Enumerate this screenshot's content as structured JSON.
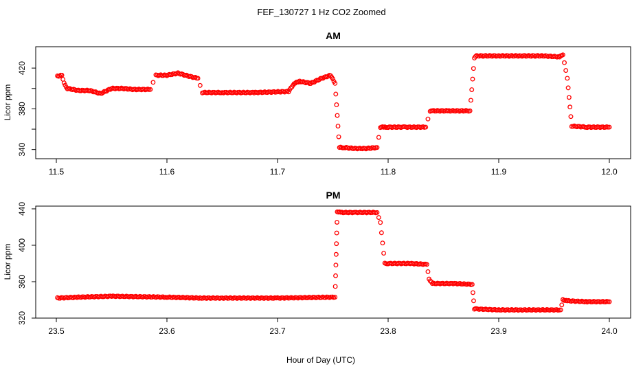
{
  "figure": {
    "title": "FEF_130727  1 Hz CO2 Zoomed",
    "xlabel": "Hour of Day (UTC)"
  },
  "chart_data": [
    {
      "type": "scatter",
      "title": "AM",
      "xlabel": "",
      "ylabel": "Licor ppm",
      "xlim": [
        11.5,
        12.0
      ],
      "ylim": [
        331,
        441
      ],
      "x_ticks": [
        11.5,
        11.6,
        11.7,
        11.8,
        11.9,
        12.0
      ],
      "x_tick_labels": [
        "11.5",
        "11.6",
        "11.7",
        "11.8",
        "11.9",
        "12.0"
      ],
      "y_ticks": [
        340,
        360,
        380,
        400,
        420
      ],
      "y_tick_labels": [
        "340",
        "",
        "380",
        "",
        "420"
      ],
      "grid": false,
      "marker": "open-circle",
      "color": "#ff0000",
      "series": [
        {
          "name": "",
          "x": [
            11.501,
            11.505,
            11.507,
            11.51,
            11.52,
            11.53,
            11.54,
            11.55,
            11.56,
            11.57,
            11.585,
            11.59,
            11.6,
            11.61,
            11.62,
            11.628,
            11.632,
            11.65,
            11.68,
            11.71,
            11.715,
            11.72,
            11.73,
            11.74,
            11.748,
            11.752,
            11.756,
            11.76,
            11.77,
            11.78,
            11.79,
            11.793,
            11.797,
            11.8,
            11.815,
            11.834,
            11.838,
            11.84,
            11.855,
            11.874,
            11.878,
            11.88,
            11.9,
            11.92,
            11.94,
            11.955,
            11.958,
            11.962,
            11.966,
            11.98,
            12.0
          ],
          "y": [
            412,
            413,
            405,
            400,
            398,
            398,
            395,
            400,
            400,
            399,
            399,
            413,
            413,
            415,
            412,
            410,
            396,
            396,
            396,
            397,
            405,
            407,
            405,
            410,
            413,
            405,
            342,
            342,
            341,
            341,
            342,
            362,
            362,
            362,
            362,
            362,
            378,
            378,
            378,
            378,
            430,
            432,
            432,
            432,
            432,
            431,
            433,
            410,
            363,
            362,
            362
          ]
        }
      ]
    },
    {
      "type": "scatter",
      "title": "PM",
      "xlabel": "Hour of Day (UTC)",
      "ylabel": "Licor ppm",
      "xlim": [
        23.5,
        24.0
      ],
      "ylim": [
        320,
        443
      ],
      "x_ticks": [
        23.5,
        23.6,
        23.7,
        23.8,
        23.9,
        24.0
      ],
      "x_tick_labels": [
        "23.5",
        "23.6",
        "23.7",
        "23.8",
        "23.9",
        "24.0"
      ],
      "y_ticks": [
        320,
        360,
        400,
        440
      ],
      "y_tick_labels": [
        "320",
        "360",
        "400",
        "440"
      ],
      "grid": false,
      "marker": "open-circle",
      "color": "#ff0000",
      "series": [
        {
          "name": "",
          "x": [
            23.501,
            23.52,
            23.55,
            23.6,
            23.63,
            23.65,
            23.7,
            23.752,
            23.754,
            23.757,
            23.77,
            23.79,
            23.793,
            23.797,
            23.8,
            23.82,
            23.835,
            23.837,
            23.84,
            23.86,
            23.876,
            23.878,
            23.88,
            23.9,
            23.92,
            23.956,
            23.958,
            23.962,
            23.98,
            24.0
          ],
          "y": [
            342,
            343,
            344,
            343,
            342,
            342,
            342,
            343,
            437,
            436,
            436,
            436,
            425,
            380,
            380,
            380,
            379,
            363,
            358,
            358,
            357,
            330,
            330,
            329,
            329,
            329,
            340,
            339,
            338,
            338
          ]
        }
      ]
    }
  ]
}
